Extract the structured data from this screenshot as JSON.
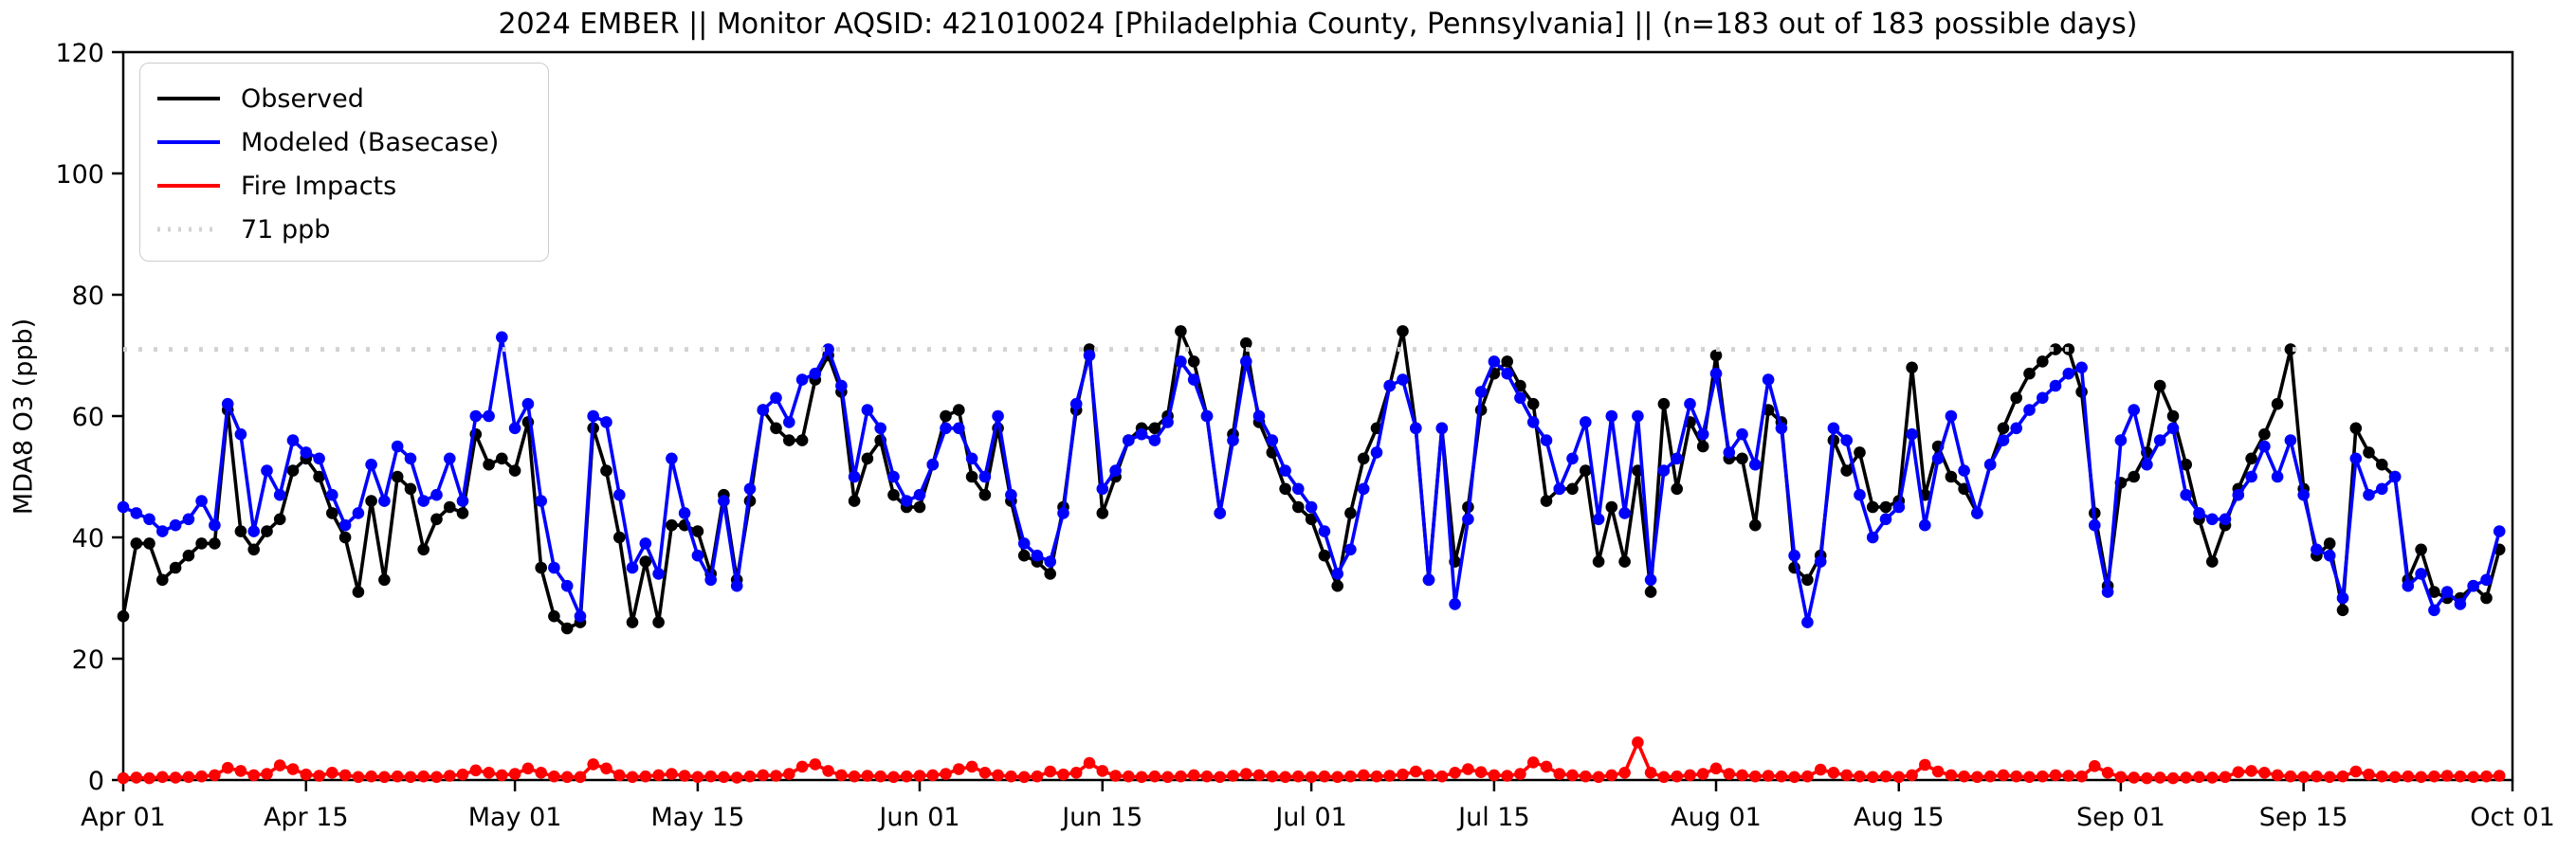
{
  "header": {
    "title": "2024 EMBER || Monitor AQSID: 421010024 [Philadelphia County, Pennsylvania] || (n=183 out of 183 possible days)"
  },
  "axes": {
    "ylabel": "MDA8 O3 (ppb)",
    "ylim": [
      0,
      120
    ],
    "yticks": [
      0,
      20,
      40,
      60,
      80,
      100,
      120
    ],
    "xtick_days": [
      0,
      14,
      30,
      44,
      61,
      75,
      91,
      105,
      122,
      136,
      153,
      167,
      183
    ],
    "xtick_labels": [
      "Apr 01",
      "Apr 15",
      "May 01",
      "May 15",
      "Jun 01",
      "Jun 15",
      "Jul 01",
      "Jul 15",
      "Aug 01",
      "Aug 15",
      "Sep 01",
      "Sep 15",
      "Oct 01"
    ],
    "grid": false
  },
  "legend": {
    "position": "upper-left",
    "items": [
      {
        "label": "Observed",
        "color": "#000000",
        "style": "solid"
      },
      {
        "label": "Modeled (Basecase)",
        "color": "#0000ff",
        "style": "solid"
      },
      {
        "label": "Fire Impacts",
        "color": "#ff0000",
        "style": "solid"
      },
      {
        "label": "71 ppb",
        "color": "#d3d3d3",
        "style": "dotted"
      }
    ]
  },
  "chart_data": {
    "type": "line",
    "title": "2024 EMBER || Monitor AQSID: 421010024 [Philadelphia County, Pennsylvania] || (n=183 out of 183 possible days)",
    "xlabel": "",
    "ylabel": "MDA8 O3 (ppb)",
    "x_start_label": "Apr 01",
    "x_end_label": "Oct 01",
    "n_days": 183,
    "reference_line": {
      "value": 71,
      "label": "71 ppb",
      "color": "#d3d3d3",
      "style": "dotted"
    },
    "marker": "circle",
    "series": [
      {
        "name": "Observed",
        "color": "#000000",
        "values": [
          27,
          39,
          39,
          33,
          35,
          37,
          39,
          39,
          61,
          41,
          38,
          41,
          43,
          51,
          53,
          50,
          44,
          40,
          31,
          46,
          33,
          50,
          48,
          38,
          43,
          45,
          44,
          57,
          52,
          53,
          51,
          59,
          35,
          27,
          25,
          26,
          58,
          51,
          40,
          26,
          36,
          26,
          42,
          42,
          41,
          34,
          47,
          33,
          46,
          61,
          58,
          56,
          56,
          66,
          70,
          64,
          46,
          53,
          56,
          47,
          45,
          45,
          52,
          60,
          61,
          50,
          47,
          58,
          46,
          37,
          36,
          34,
          45,
          61,
          71,
          44,
          50,
          56,
          58,
          58,
          60,
          74,
          69,
          60,
          44,
          57,
          72,
          59,
          54,
          48,
          45,
          43,
          37,
          32,
          44,
          53,
          58,
          65,
          74,
          58,
          33,
          58,
          36,
          45,
          61,
          67,
          69,
          65,
          62,
          46,
          48,
          48,
          51,
          36,
          45,
          36,
          51,
          31,
          62,
          48,
          59,
          55,
          70,
          53,
          53,
          42,
          61,
          59,
          35,
          33,
          37,
          56,
          51,
          54,
          45,
          45,
          46,
          68,
          47,
          55,
          50,
          48,
          44,
          52,
          58,
          63,
          67,
          69,
          71,
          71,
          64,
          44,
          32,
          49,
          50,
          54,
          65,
          60,
          52,
          43,
          36,
          42,
          48,
          53,
          57,
          62,
          71,
          48,
          37,
          39,
          28,
          58,
          54,
          52,
          50,
          33,
          38,
          31,
          30,
          30,
          32,
          30,
          38
        ]
      },
      {
        "name": "Modeled (Basecase)",
        "color": "#0000ff",
        "values": [
          45,
          44,
          43,
          41,
          42,
          43,
          46,
          42,
          62,
          57,
          41,
          51,
          47,
          56,
          54,
          53,
          47,
          42,
          44,
          52,
          46,
          55,
          53,
          46,
          47,
          53,
          46,
          60,
          60,
          73,
          58,
          62,
          46,
          35,
          32,
          27,
          60,
          59,
          47,
          35,
          39,
          34,
          53,
          44,
          37,
          33,
          46,
          32,
          48,
          61,
          63,
          59,
          66,
          67,
          71,
          65,
          50,
          61,
          58,
          50,
          46,
          47,
          52,
          58,
          58,
          53,
          50,
          60,
          47,
          39,
          37,
          36,
          44,
          62,
          70,
          48,
          51,
          56,
          57,
          56,
          59,
          69,
          66,
          60,
          44,
          56,
          69,
          60,
          56,
          51,
          48,
          45,
          41,
          34,
          38,
          48,
          54,
          65,
          66,
          58,
          33,
          58,
          29,
          43,
          64,
          69,
          67,
          63,
          59,
          56,
          48,
          53,
          59,
          43,
          60,
          44,
          60,
          33,
          51,
          53,
          62,
          57,
          67,
          54,
          57,
          52,
          66,
          58,
          37,
          26,
          36,
          58,
          56,
          47,
          40,
          43,
          45,
          57,
          42,
          53,
          60,
          51,
          44,
          52,
          56,
          58,
          61,
          63,
          65,
          67,
          68,
          42,
          31,
          56,
          61,
          52,
          56,
          58,
          47,
          44,
          43,
          43,
          47,
          50,
          55,
          50,
          56,
          47,
          38,
          37,
          30,
          53,
          47,
          48,
          50,
          32,
          34,
          28,
          31,
          29,
          32,
          33,
          41
        ]
      },
      {
        "name": "Fire Impacts",
        "color": "#ff0000",
        "values": [
          0.3,
          0.4,
          0.3,
          0.5,
          0.4,
          0.5,
          0.6,
          0.8,
          2.0,
          1.5,
          0.8,
          1.0,
          2.4,
          1.8,
          0.9,
          0.7,
          1.2,
          0.8,
          0.5,
          0.6,
          0.5,
          0.6,
          0.5,
          0.6,
          0.5,
          0.7,
          0.9,
          1.6,
          1.2,
          0.8,
          1.0,
          1.9,
          1.2,
          0.6,
          0.5,
          0.5,
          2.6,
          1.9,
          0.8,
          0.5,
          0.6,
          0.8,
          1.0,
          0.7,
          0.5,
          0.6,
          0.5,
          0.4,
          0.6,
          0.8,
          0.7,
          1.0,
          2.2,
          2.6,
          1.5,
          0.8,
          0.6,
          0.7,
          0.6,
          0.5,
          0.6,
          0.7,
          0.8,
          1.0,
          1.8,
          2.2,
          1.2,
          0.8,
          0.6,
          0.5,
          0.6,
          1.4,
          0.9,
          1.2,
          2.8,
          1.5,
          0.7,
          0.6,
          0.5,
          0.6,
          0.5,
          0.6,
          0.8,
          0.6,
          0.5,
          0.7,
          1.0,
          0.8,
          0.6,
          0.5,
          0.6,
          0.5,
          0.6,
          0.5,
          0.6,
          0.8,
          0.6,
          0.7,
          0.9,
          1.4,
          0.8,
          0.6,
          1.2,
          1.8,
          1.3,
          0.8,
          0.7,
          1.0,
          2.9,
          2.2,
          1.0,
          0.8,
          0.6,
          0.5,
          0.8,
          1.2,
          6.2,
          1.2,
          0.5,
          0.6,
          0.8,
          1.0,
          1.9,
          1.0,
          0.8,
          0.6,
          0.7,
          0.6,
          0.5,
          0.6,
          1.7,
          1.2,
          0.8,
          0.6,
          0.5,
          0.6,
          0.5,
          0.8,
          2.5,
          1.4,
          0.8,
          0.6,
          0.5,
          0.6,
          0.8,
          0.6,
          0.5,
          0.6,
          0.8,
          0.7,
          0.6,
          2.3,
          1.2,
          0.5,
          0.4,
          0.3,
          0.4,
          0.3,
          0.4,
          0.5,
          0.4,
          0.5,
          1.3,
          1.5,
          1.2,
          0.8,
          0.6,
          0.5,
          0.6,
          0.5,
          0.6,
          1.4,
          0.9,
          0.6,
          0.5,
          0.6,
          0.5,
          0.6,
          0.7,
          0.6,
          0.5,
          0.6,
          0.7
        ]
      }
    ],
    "colors": {
      "observed": "#000000",
      "modeled": "#0000ff",
      "fire": "#ff0000",
      "reference": "#d3d3d3",
      "axis": "#000000",
      "background": "#ffffff"
    }
  }
}
